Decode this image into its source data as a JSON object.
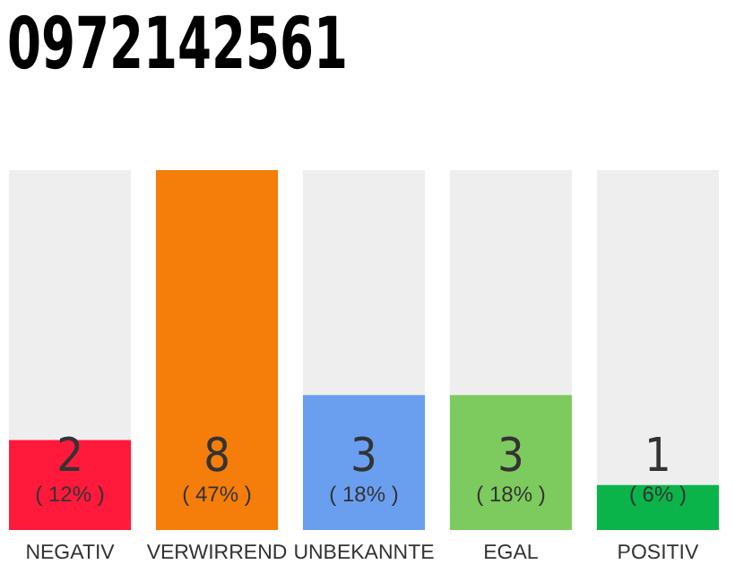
{
  "chart_data": {
    "type": "bar",
    "title": "0972142561",
    "categories": [
      "NEGATIV",
      "VERWIRREND",
      "UNBEKANNTE",
      "EGAL",
      "POSITIV"
    ],
    "values": [
      2,
      8,
      3,
      3,
      1
    ],
    "colors": [
      "#ff1a3c",
      "#f57d0a",
      "#6a9ff0",
      "#7dcb5e",
      "#0bb44a"
    ],
    "ylim": [
      0,
      8
    ],
    "tick_labels": "x",
    "data_labels": true,
    "annotations": [
      "( 12% )",
      "( 47% )",
      "( 18% )",
      "( 18% )",
      "( 6% )"
    ]
  }
}
